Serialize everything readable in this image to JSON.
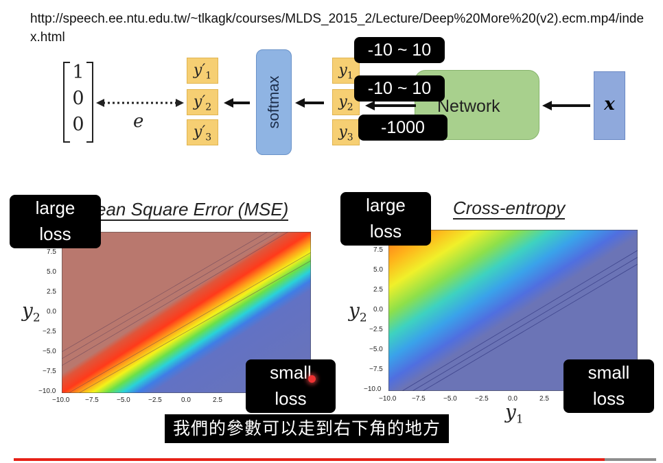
{
  "lecture": {
    "url": "http://speech.ee.ntu.edu.tw/~tlkagk/courses/MLDS_2015_2/Lecture/Deep%20More%20(v2).ecm.mp4/index.html"
  },
  "diagram": {
    "target_vector": [
      "1",
      "0",
      "0"
    ],
    "error_label": "e",
    "y_prime": [
      {
        "base": "y′",
        "sub": "1"
      },
      {
        "base": "y′",
        "sub": "2"
      },
      {
        "base": "y′",
        "sub": "3"
      }
    ],
    "softmax_label": "softmax",
    "y_outputs": [
      {
        "base": "y",
        "sub": "1"
      },
      {
        "base": "y",
        "sub": "2"
      },
      {
        "base": "y",
        "sub": "3"
      }
    ],
    "network_label": "Network",
    "input_label": "x",
    "annotations": [
      "-10 ~ 10",
      "-10 ~ 10",
      "-1000"
    ]
  },
  "plots": {
    "left_title": "ean Square Error (MSE)",
    "right_title": "Cross-entropy",
    "y_ticks": [
      "7.5",
      "5.0",
      "2.5",
      "0.0",
      "−2.5",
      "−5.0",
      "−7.5",
      "−10.0"
    ],
    "x_ticks": [
      "−10.0",
      "−7.5",
      "−5.0",
      "−2.5",
      "0.0",
      "2.5"
    ],
    "y_axis_label": {
      "base": "y",
      "sub": "2"
    },
    "x_axis_label": {
      "base": "y",
      "sub": "1"
    },
    "large_loss": [
      "large",
      "loss"
    ],
    "small_loss": [
      "small",
      "loss"
    ]
  },
  "player": {
    "subtitle": "我們的參數可以走到右下角的地方",
    "progress": 0.92
  },
  "colors": {
    "softmax": "#8fb4e3",
    "network": "#a8d08d",
    "input": "#8fa9dc",
    "y_box": "#f6cf73",
    "progress": "#e62117"
  }
}
